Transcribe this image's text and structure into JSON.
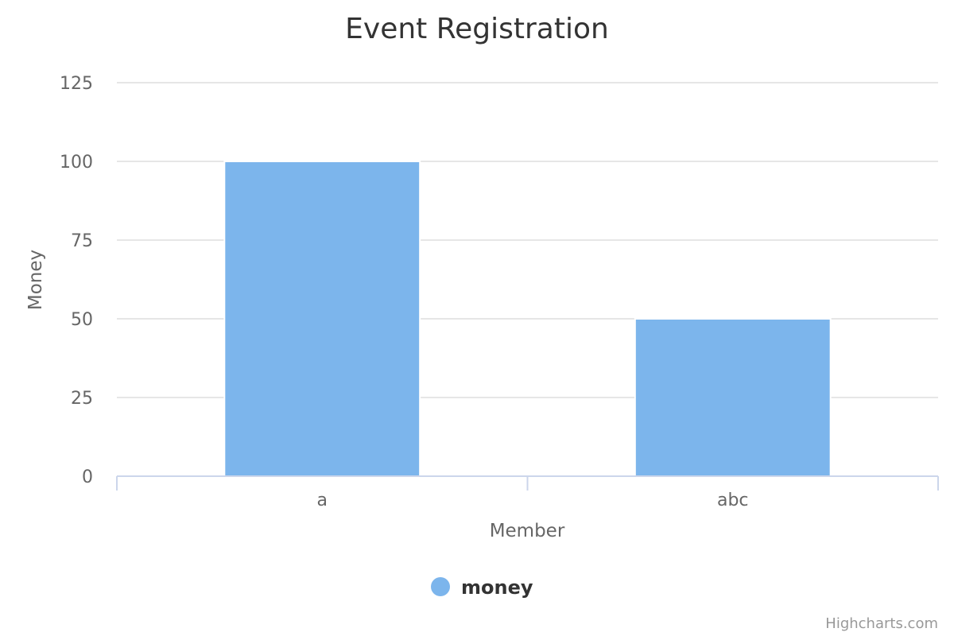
{
  "chart_data": {
    "type": "bar",
    "title": "Event Registration",
    "xlabel": "Member",
    "ylabel": "Money",
    "categories": [
      "a",
      "abc"
    ],
    "series": [
      {
        "name": "money",
        "values": [
          100,
          50
        ],
        "color": "#7cb5ec"
      }
    ],
    "ylim": [
      0,
      125
    ],
    "yticks": [
      0,
      25,
      50,
      75,
      100,
      125
    ],
    "grid": true,
    "legend": "bottom-center"
  },
  "credits": "Highcharts.com"
}
